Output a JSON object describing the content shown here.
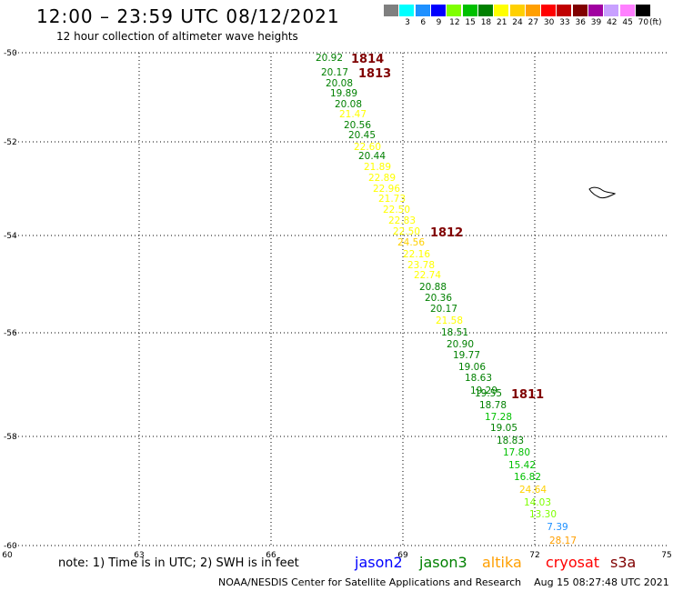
{
  "header": {
    "title": "12:00 – 23:59 UTC 08/12/2021",
    "subtitle": "12 hour collection of altimeter wave heights"
  },
  "color_scale": {
    "labels": [
      "3",
      "6",
      "9",
      "12",
      "15",
      "18",
      "21",
      "24",
      "27",
      "30",
      "33",
      "36",
      "39",
      "42",
      "45",
      "70"
    ],
    "unit": "(ft)",
    "colors": [
      "#7f7f7f",
      "#00ffff",
      "#1e90ff",
      "#0000ff",
      "#7fff00",
      "#00c000",
      "#008000",
      "#ffff00",
      "#ffd000",
      "#ff9f00",
      "#ff0000",
      "#c00000",
      "#800000",
      "#a000a0",
      "#c8a0ff",
      "#ff80ff",
      "#000000"
    ]
  },
  "map": {
    "lon_labels": [
      "60",
      "63",
      "66",
      "69",
      "72",
      "75"
    ],
    "lat_labels": [
      "-50",
      "-52",
      "-54",
      "-56",
      "-58",
      "-60"
    ],
    "passes": [
      {
        "label": "1814",
        "color": "#800000"
      },
      {
        "label": "1813",
        "color": "#800000"
      },
      {
        "label": "1812",
        "color": "#800000"
      },
      {
        "label": "1811",
        "color": "#800000"
      }
    ],
    "observations": [
      {
        "value": "20.92",
        "color": "#008000"
      },
      {
        "value": "20.17",
        "color": "#008000"
      },
      {
        "value": "20.08",
        "color": "#008000"
      },
      {
        "value": "19.89",
        "color": "#008000"
      },
      {
        "value": "20.08",
        "color": "#008000"
      },
      {
        "value": "21.47",
        "color": "#ffff00"
      },
      {
        "value": "20.56",
        "color": "#008000"
      },
      {
        "value": "20.45",
        "color": "#008000"
      },
      {
        "value": "22.60",
        "color": "#ffff00"
      },
      {
        "value": "20.44",
        "color": "#008000"
      },
      {
        "value": "21.89",
        "color": "#ffff00"
      },
      {
        "value": "22.89",
        "color": "#ffff00"
      },
      {
        "value": "22.96",
        "color": "#ffff00"
      },
      {
        "value": "21.73",
        "color": "#ffff00"
      },
      {
        "value": "22.50",
        "color": "#ffff00"
      },
      {
        "value": "22.83",
        "color": "#ffff00"
      },
      {
        "value": "22.50",
        "color": "#ffff00"
      },
      {
        "value": "24.56",
        "color": "#ffd000"
      },
      {
        "value": "22.16",
        "color": "#ffff00"
      },
      {
        "value": "23.78",
        "color": "#ffff00"
      },
      {
        "value": "22.74",
        "color": "#ffff00"
      },
      {
        "value": "20.88",
        "color": "#008000"
      },
      {
        "value": "20.36",
        "color": "#008000"
      },
      {
        "value": "20.17",
        "color": "#008000"
      },
      {
        "value": "21.58",
        "color": "#ffff00"
      },
      {
        "value": "18.51",
        "color": "#008000"
      },
      {
        "value": "20.90",
        "color": "#008000"
      },
      {
        "value": "19.77",
        "color": "#008000"
      },
      {
        "value": "19.06",
        "color": "#008000"
      },
      {
        "value": "18.63",
        "color": "#008000"
      },
      {
        "value": "19.29",
        "color": "#008000"
      },
      {
        "value": "19.55",
        "color": "#008000"
      },
      {
        "value": "18.78",
        "color": "#008000"
      },
      {
        "value": "17.28",
        "color": "#00c000"
      },
      {
        "value": "19.05",
        "color": "#008000"
      },
      {
        "value": "18.83",
        "color": "#008000"
      },
      {
        "value": "17.80",
        "color": "#00c000"
      },
      {
        "value": "15.42",
        "color": "#00c000"
      },
      {
        "value": "16.82",
        "color": "#00c000"
      },
      {
        "value": "24.64",
        "color": "#ffd000"
      },
      {
        "value": "14.03",
        "color": "#7fff00"
      },
      {
        "value": "13.30",
        "color": "#7fff00"
      },
      {
        "value": "7.39",
        "color": "#1e90ff"
      },
      {
        "value": "28.17",
        "color": "#ff9f00"
      }
    ]
  },
  "footer": {
    "note": "note:  1) Time is in UTC;  2) SWH is in feet",
    "satellites": [
      {
        "name": "jason2",
        "color": "#0000ff"
      },
      {
        "name": "jason3",
        "color": "#008000"
      },
      {
        "name": "altika",
        "color": "#ff9f00"
      },
      {
        "name": "cryosat",
        "color": "#ff0000"
      },
      {
        "name": "s3a",
        "color": "#800000"
      }
    ],
    "credit": "NOAA/NESDIS Center for Satellite Applications and Research    Aug 15 08:27:48 UTC 2021"
  }
}
